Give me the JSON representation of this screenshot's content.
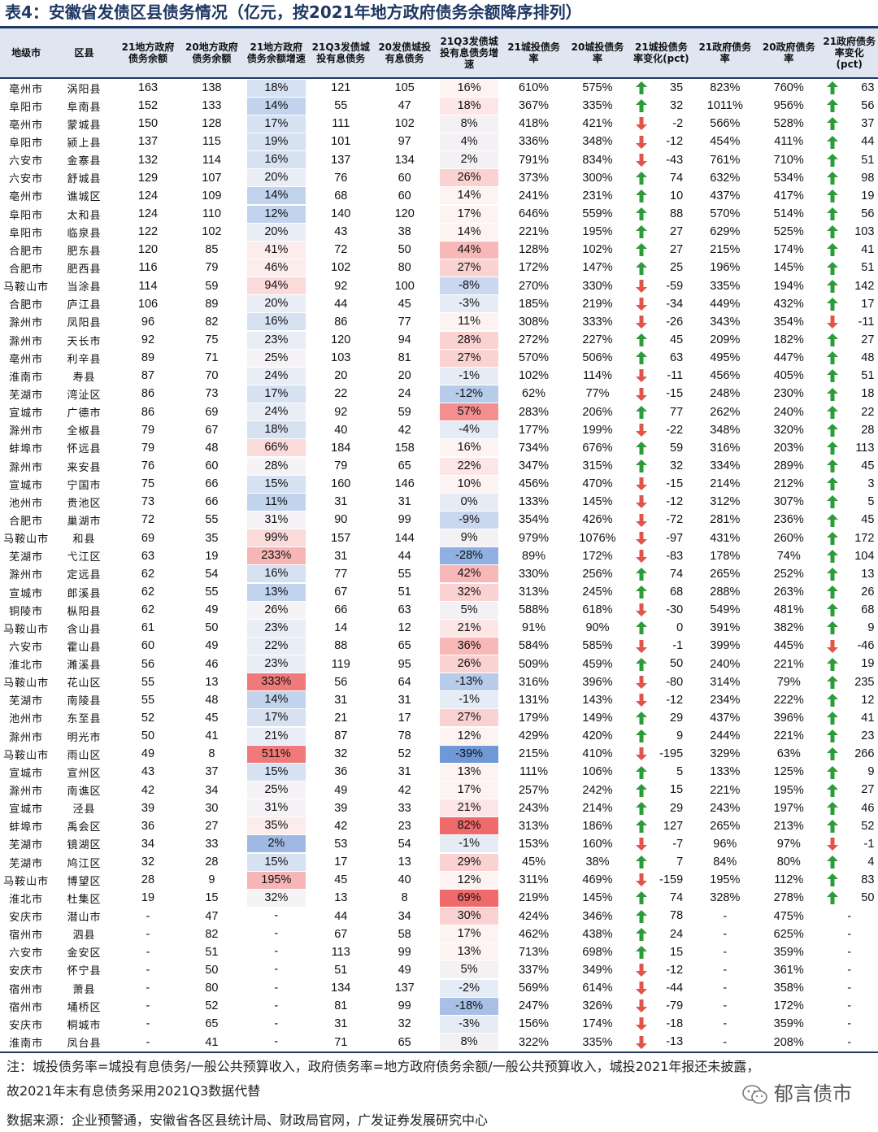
{
  "title": "表4：安徽省发债区县债务情况（亿元，按2021年地方政府债务余额降序排列）",
  "colors": {
    "up": "#2e9b3a",
    "down": "#e0554a",
    "header_bg": "#dfe6f2",
    "accent": "#1f3864"
  },
  "columns": [
    "地级市",
    "区县",
    "21地方政府债务余额",
    "20地方政府债务余额",
    "21地方政府债务余额增速",
    "21Q3发债城投有息债务",
    "20发债城投有息债务",
    "21Q3发债城投有息债务增速",
    "21城投债务率",
    "20城投债务率",
    "21城投债务率变化(pct)",
    "21政府债务率",
    "20政府债务率",
    "21政府债务率变化(pct)"
  ],
  "rows": [
    {
      "city": "亳州市",
      "county": "涡阳县",
      "gd21": "163",
      "gd20": "138",
      "gg": "18%",
      "cd21": "121",
      "cd20": "105",
      "cg": "16%",
      "cr21": "610%",
      "cr20": "575%",
      "crc": "35",
      "crd": "up",
      "gr21": "823%",
      "gr20": "760%",
      "grc": "63",
      "grd": "up"
    },
    {
      "city": "阜阳市",
      "county": "阜南县",
      "gd21": "152",
      "gd20": "133",
      "gg": "14%",
      "cd21": "55",
      "cd20": "47",
      "cg": "18%",
      "cr21": "367%",
      "cr20": "335%",
      "crc": "32",
      "crd": "up",
      "gr21": "1011%",
      "gr20": "956%",
      "grc": "56",
      "grd": "up"
    },
    {
      "city": "亳州市",
      "county": "蒙城县",
      "gd21": "150",
      "gd20": "128",
      "gg": "17%",
      "cd21": "111",
      "cd20": "102",
      "cg": "8%",
      "cr21": "418%",
      "cr20": "421%",
      "crc": "-2",
      "crd": "down",
      "gr21": "566%",
      "gr20": "528%",
      "grc": "37",
      "grd": "up"
    },
    {
      "city": "阜阳市",
      "county": "颍上县",
      "gd21": "137",
      "gd20": "115",
      "gg": "19%",
      "cd21": "101",
      "cd20": "97",
      "cg": "4%",
      "cr21": "336%",
      "cr20": "348%",
      "crc": "-12",
      "crd": "down",
      "gr21": "454%",
      "gr20": "411%",
      "grc": "44",
      "grd": "up"
    },
    {
      "city": "六安市",
      "county": "金寨县",
      "gd21": "132",
      "gd20": "114",
      "gg": "16%",
      "cd21": "137",
      "cd20": "134",
      "cg": "2%",
      "cr21": "791%",
      "cr20": "834%",
      "crc": "-43",
      "crd": "down",
      "gr21": "761%",
      "gr20": "710%",
      "grc": "51",
      "grd": "up"
    },
    {
      "city": "六安市",
      "county": "舒城县",
      "gd21": "129",
      "gd20": "107",
      "gg": "20%",
      "cd21": "76",
      "cd20": "60",
      "cg": "26%",
      "cr21": "373%",
      "cr20": "300%",
      "crc": "74",
      "crd": "up",
      "gr21": "632%",
      "gr20": "534%",
      "grc": "98",
      "grd": "up"
    },
    {
      "city": "亳州市",
      "county": "谯城区",
      "gd21": "124",
      "gd20": "109",
      "gg": "14%",
      "cd21": "68",
      "cd20": "60",
      "cg": "14%",
      "cr21": "241%",
      "cr20": "231%",
      "crc": "10",
      "crd": "up",
      "gr21": "437%",
      "gr20": "417%",
      "grc": "19",
      "grd": "up"
    },
    {
      "city": "阜阳市",
      "county": "太和县",
      "gd21": "124",
      "gd20": "110",
      "gg": "12%",
      "cd21": "140",
      "cd20": "120",
      "cg": "17%",
      "cr21": "646%",
      "cr20": "559%",
      "crc": "88",
      "crd": "up",
      "gr21": "570%",
      "gr20": "514%",
      "grc": "56",
      "grd": "up"
    },
    {
      "city": "阜阳市",
      "county": "临泉县",
      "gd21": "122",
      "gd20": "102",
      "gg": "20%",
      "cd21": "43",
      "cd20": "38",
      "cg": "14%",
      "cr21": "221%",
      "cr20": "195%",
      "crc": "27",
      "crd": "up",
      "gr21": "629%",
      "gr20": "525%",
      "grc": "103",
      "grd": "up"
    },
    {
      "city": "合肥市",
      "county": "肥东县",
      "gd21": "120",
      "gd20": "85",
      "gg": "41%",
      "cd21": "72",
      "cd20": "50",
      "cg": "44%",
      "cr21": "128%",
      "cr20": "102%",
      "crc": "27",
      "crd": "up",
      "gr21": "215%",
      "gr20": "174%",
      "grc": "41",
      "grd": "up"
    },
    {
      "city": "合肥市",
      "county": "肥西县",
      "gd21": "116",
      "gd20": "79",
      "gg": "46%",
      "cd21": "102",
      "cd20": "80",
      "cg": "27%",
      "cr21": "172%",
      "cr20": "147%",
      "crc": "25",
      "crd": "up",
      "gr21": "196%",
      "gr20": "145%",
      "grc": "51",
      "grd": "up"
    },
    {
      "city": "马鞍山市",
      "county": "当涂县",
      "gd21": "114",
      "gd20": "59",
      "gg": "94%",
      "cd21": "92",
      "cd20": "100",
      "cg": "-8%",
      "cr21": "270%",
      "cr20": "330%",
      "crc": "-59",
      "crd": "down",
      "gr21": "335%",
      "gr20": "194%",
      "grc": "142",
      "grd": "up"
    },
    {
      "city": "合肥市",
      "county": "庐江县",
      "gd21": "106",
      "gd20": "89",
      "gg": "20%",
      "cd21": "44",
      "cd20": "45",
      "cg": "-3%",
      "cr21": "185%",
      "cr20": "219%",
      "crc": "-34",
      "crd": "down",
      "gr21": "449%",
      "gr20": "432%",
      "grc": "17",
      "grd": "up"
    },
    {
      "city": "滁州市",
      "county": "凤阳县",
      "gd21": "96",
      "gd20": "82",
      "gg": "16%",
      "cd21": "86",
      "cd20": "77",
      "cg": "11%",
      "cr21": "308%",
      "cr20": "333%",
      "crc": "-26",
      "crd": "down",
      "gr21": "343%",
      "gr20": "354%",
      "grc": "-11",
      "grd": "down"
    },
    {
      "city": "滁州市",
      "county": "天长市",
      "gd21": "92",
      "gd20": "75",
      "gg": "23%",
      "cd21": "120",
      "cd20": "94",
      "cg": "28%",
      "cr21": "272%",
      "cr20": "227%",
      "crc": "45",
      "crd": "up",
      "gr21": "209%",
      "gr20": "182%",
      "grc": "27",
      "grd": "up"
    },
    {
      "city": "亳州市",
      "county": "利辛县",
      "gd21": "89",
      "gd20": "71",
      "gg": "25%",
      "cd21": "103",
      "cd20": "81",
      "cg": "27%",
      "cr21": "570%",
      "cr20": "506%",
      "crc": "63",
      "crd": "up",
      "gr21": "495%",
      "gr20": "447%",
      "grc": "48",
      "grd": "up"
    },
    {
      "city": "淮南市",
      "county": "寿县",
      "gd21": "87",
      "gd20": "70",
      "gg": "24%",
      "cd21": "20",
      "cd20": "20",
      "cg": "-1%",
      "cr21": "102%",
      "cr20": "114%",
      "crc": "-11",
      "crd": "down",
      "gr21": "456%",
      "gr20": "405%",
      "grc": "51",
      "grd": "up"
    },
    {
      "city": "芜湖市",
      "county": "湾沚区",
      "gd21": "86",
      "gd20": "73",
      "gg": "17%",
      "cd21": "22",
      "cd20": "24",
      "cg": "-12%",
      "cr21": "62%",
      "cr20": "77%",
      "crc": "-15",
      "crd": "down",
      "gr21": "248%",
      "gr20": "230%",
      "grc": "18",
      "grd": "up"
    },
    {
      "city": "宣城市",
      "county": "广德市",
      "gd21": "86",
      "gd20": "69",
      "gg": "24%",
      "cd21": "92",
      "cd20": "59",
      "cg": "57%",
      "cr21": "283%",
      "cr20": "206%",
      "crc": "77",
      "crd": "up",
      "gr21": "262%",
      "gr20": "240%",
      "grc": "22",
      "grd": "up"
    },
    {
      "city": "滁州市",
      "county": "全椒县",
      "gd21": "79",
      "gd20": "67",
      "gg": "18%",
      "cd21": "40",
      "cd20": "42",
      "cg": "-4%",
      "cr21": "177%",
      "cr20": "199%",
      "crc": "-22",
      "crd": "down",
      "gr21": "348%",
      "gr20": "320%",
      "grc": "28",
      "grd": "up"
    },
    {
      "city": "蚌埠市",
      "county": "怀远县",
      "gd21": "79",
      "gd20": "48",
      "gg": "66%",
      "cd21": "184",
      "cd20": "158",
      "cg": "16%",
      "cr21": "734%",
      "cr20": "676%",
      "crc": "59",
      "crd": "up",
      "gr21": "316%",
      "gr20": "203%",
      "grc": "113",
      "grd": "up"
    },
    {
      "city": "滁州市",
      "county": "来安县",
      "gd21": "76",
      "gd20": "60",
      "gg": "28%",
      "cd21": "79",
      "cd20": "65",
      "cg": "22%",
      "cr21": "347%",
      "cr20": "315%",
      "crc": "32",
      "crd": "up",
      "gr21": "334%",
      "gr20": "289%",
      "grc": "45",
      "grd": "up"
    },
    {
      "city": "宣城市",
      "county": "宁国市",
      "gd21": "75",
      "gd20": "66",
      "gg": "15%",
      "cd21": "160",
      "cd20": "146",
      "cg": "10%",
      "cr21": "456%",
      "cr20": "470%",
      "crc": "-15",
      "crd": "down",
      "gr21": "214%",
      "gr20": "212%",
      "grc": "3",
      "grd": "up"
    },
    {
      "city": "池州市",
      "county": "贵池区",
      "gd21": "73",
      "gd20": "66",
      "gg": "11%",
      "cd21": "31",
      "cd20": "31",
      "cg": "0%",
      "cr21": "133%",
      "cr20": "145%",
      "crc": "-12",
      "crd": "down",
      "gr21": "312%",
      "gr20": "307%",
      "grc": "5",
      "grd": "up"
    },
    {
      "city": "合肥市",
      "county": "巢湖市",
      "gd21": "72",
      "gd20": "55",
      "gg": "31%",
      "cd21": "90",
      "cd20": "99",
      "cg": "-9%",
      "cr21": "354%",
      "cr20": "426%",
      "crc": "-72",
      "crd": "down",
      "gr21": "281%",
      "gr20": "236%",
      "grc": "45",
      "grd": "up"
    },
    {
      "city": "马鞍山市",
      "county": "和县",
      "gd21": "69",
      "gd20": "35",
      "gg": "99%",
      "cd21": "157",
      "cd20": "144",
      "cg": "9%",
      "cr21": "979%",
      "cr20": "1076%",
      "crc": "-97",
      "crd": "down",
      "gr21": "431%",
      "gr20": "260%",
      "grc": "172",
      "grd": "up"
    },
    {
      "city": "芜湖市",
      "county": "弋江区",
      "gd21": "63",
      "gd20": "19",
      "gg": "233%",
      "cd21": "31",
      "cd20": "44",
      "cg": "-28%",
      "cr21": "89%",
      "cr20": "172%",
      "crc": "-83",
      "crd": "down",
      "gr21": "178%",
      "gr20": "74%",
      "grc": "104",
      "grd": "up"
    },
    {
      "city": "滁州市",
      "county": "定远县",
      "gd21": "62",
      "gd20": "54",
      "gg": "16%",
      "cd21": "77",
      "cd20": "55",
      "cg": "42%",
      "cr21": "330%",
      "cr20": "256%",
      "crc": "74",
      "crd": "up",
      "gr21": "265%",
      "gr20": "252%",
      "grc": "13",
      "grd": "up"
    },
    {
      "city": "宣城市",
      "county": "郎溪县",
      "gd21": "62",
      "gd20": "55",
      "gg": "13%",
      "cd21": "67",
      "cd20": "51",
      "cg": "32%",
      "cr21": "313%",
      "cr20": "245%",
      "crc": "68",
      "crd": "up",
      "gr21": "288%",
      "gr20": "263%",
      "grc": "26",
      "grd": "up"
    },
    {
      "city": "铜陵市",
      "county": "枞阳县",
      "gd21": "62",
      "gd20": "49",
      "gg": "26%",
      "cd21": "66",
      "cd20": "63",
      "cg": "5%",
      "cr21": "588%",
      "cr20": "618%",
      "crc": "-30",
      "crd": "down",
      "gr21": "549%",
      "gr20": "481%",
      "grc": "68",
      "grd": "up"
    },
    {
      "city": "马鞍山市",
      "county": "含山县",
      "gd21": "61",
      "gd20": "50",
      "gg": "23%",
      "cd21": "14",
      "cd20": "12",
      "cg": "21%",
      "cr21": "91%",
      "cr20": "90%",
      "crc": "0",
      "crd": "up",
      "gr21": "391%",
      "gr20": "382%",
      "grc": "9",
      "grd": "up"
    },
    {
      "city": "六安市",
      "county": "霍山县",
      "gd21": "60",
      "gd20": "49",
      "gg": "22%",
      "cd21": "88",
      "cd20": "65",
      "cg": "36%",
      "cr21": "584%",
      "cr20": "585%",
      "crc": "-1",
      "crd": "down",
      "gr21": "399%",
      "gr20": "445%",
      "grc": "-46",
      "grd": "down"
    },
    {
      "city": "淮北市",
      "county": "濉溪县",
      "gd21": "56",
      "gd20": "46",
      "gg": "23%",
      "cd21": "119",
      "cd20": "95",
      "cg": "26%",
      "cr21": "509%",
      "cr20": "459%",
      "crc": "50",
      "crd": "up",
      "gr21": "240%",
      "gr20": "221%",
      "grc": "19",
      "grd": "up"
    },
    {
      "city": "马鞍山市",
      "county": "花山区",
      "gd21": "55",
      "gd20": "13",
      "gg": "333%",
      "cd21": "56",
      "cd20": "64",
      "cg": "-13%",
      "cr21": "316%",
      "cr20": "396%",
      "crc": "-80",
      "crd": "down",
      "gr21": "314%",
      "gr20": "79%",
      "grc": "235",
      "grd": "up"
    },
    {
      "city": "芜湖市",
      "county": "南陵县",
      "gd21": "55",
      "gd20": "48",
      "gg": "14%",
      "cd21": "31",
      "cd20": "31",
      "cg": "-1%",
      "cr21": "131%",
      "cr20": "143%",
      "crc": "-12",
      "crd": "down",
      "gr21": "234%",
      "gr20": "222%",
      "grc": "12",
      "grd": "up"
    },
    {
      "city": "池州市",
      "county": "东至县",
      "gd21": "52",
      "gd20": "45",
      "gg": "17%",
      "cd21": "21",
      "cd20": "17",
      "cg": "27%",
      "cr21": "179%",
      "cr20": "149%",
      "crc": "29",
      "crd": "up",
      "gr21": "437%",
      "gr20": "396%",
      "grc": "41",
      "grd": "up"
    },
    {
      "city": "滁州市",
      "county": "明光市",
      "gd21": "50",
      "gd20": "41",
      "gg": "21%",
      "cd21": "87",
      "cd20": "78",
      "cg": "12%",
      "cr21": "429%",
      "cr20": "420%",
      "crc": "9",
      "crd": "up",
      "gr21": "244%",
      "gr20": "221%",
      "grc": "23",
      "grd": "up"
    },
    {
      "city": "马鞍山市",
      "county": "雨山区",
      "gd21": "49",
      "gd20": "8",
      "gg": "511%",
      "cd21": "32",
      "cd20": "52",
      "cg": "-39%",
      "cr21": "215%",
      "cr20": "410%",
      "crc": "-195",
      "crd": "down",
      "gr21": "329%",
      "gr20": "63%",
      "grc": "266",
      "grd": "up"
    },
    {
      "city": "宣城市",
      "county": "宣州区",
      "gd21": "43",
      "gd20": "37",
      "gg": "15%",
      "cd21": "36",
      "cd20": "31",
      "cg": "13%",
      "cr21": "111%",
      "cr20": "106%",
      "crc": "5",
      "crd": "up",
      "gr21": "133%",
      "gr20": "125%",
      "grc": "9",
      "grd": "up"
    },
    {
      "city": "滁州市",
      "county": "南谯区",
      "gd21": "42",
      "gd20": "34",
      "gg": "25%",
      "cd21": "49",
      "cd20": "42",
      "cg": "17%",
      "cr21": "257%",
      "cr20": "242%",
      "crc": "15",
      "crd": "up",
      "gr21": "221%",
      "gr20": "195%",
      "grc": "27",
      "grd": "up"
    },
    {
      "city": "宣城市",
      "county": "泾县",
      "gd21": "39",
      "gd20": "30",
      "gg": "31%",
      "cd21": "39",
      "cd20": "33",
      "cg": "21%",
      "cr21": "243%",
      "cr20": "214%",
      "crc": "29",
      "crd": "up",
      "gr21": "243%",
      "gr20": "197%",
      "grc": "46",
      "grd": "up"
    },
    {
      "city": "蚌埠市",
      "county": "禹会区",
      "gd21": "36",
      "gd20": "27",
      "gg": "35%",
      "cd21": "42",
      "cd20": "23",
      "cg": "82%",
      "cr21": "313%",
      "cr20": "186%",
      "crc": "127",
      "crd": "up",
      "gr21": "265%",
      "gr20": "213%",
      "grc": "52",
      "grd": "up"
    },
    {
      "city": "芜湖市",
      "county": "镜湖区",
      "gd21": "34",
      "gd20": "33",
      "gg": "2%",
      "cd21": "53",
      "cd20": "54",
      "cg": "-1%",
      "cr21": "153%",
      "cr20": "160%",
      "crc": "-7",
      "crd": "down",
      "gr21": "96%",
      "gr20": "97%",
      "grc": "-1",
      "grd": "down"
    },
    {
      "city": "芜湖市",
      "county": "鸠江区",
      "gd21": "32",
      "gd20": "28",
      "gg": "15%",
      "cd21": "17",
      "cd20": "13",
      "cg": "29%",
      "cr21": "45%",
      "cr20": "38%",
      "crc": "7",
      "crd": "up",
      "gr21": "84%",
      "gr20": "80%",
      "grc": "4",
      "grd": "up"
    },
    {
      "city": "马鞍山市",
      "county": "博望区",
      "gd21": "28",
      "gd20": "9",
      "gg": "195%",
      "cd21": "45",
      "cd20": "40",
      "cg": "12%",
      "cr21": "311%",
      "cr20": "469%",
      "crc": "-159",
      "crd": "down",
      "gr21": "195%",
      "gr20": "112%",
      "grc": "83",
      "grd": "up"
    },
    {
      "city": "淮北市",
      "county": "杜集区",
      "gd21": "19",
      "gd20": "15",
      "gg": "32%",
      "cd21": "13",
      "cd20": "8",
      "cg": "69%",
      "cr21": "219%",
      "cr20": "145%",
      "crc": "74",
      "crd": "up",
      "gr21": "328%",
      "gr20": "278%",
      "grc": "50",
      "grd": "up"
    },
    {
      "city": "安庆市",
      "county": "潜山市",
      "gd21": "-",
      "gd20": "47",
      "gg": "-",
      "cd21": "44",
      "cd20": "34",
      "cg": "30%",
      "cr21": "424%",
      "cr20": "346%",
      "crc": "78",
      "crd": "up",
      "gr21": "-",
      "gr20": "475%",
      "grc": "-",
      "grd": ""
    },
    {
      "city": "宿州市",
      "county": "泗县",
      "gd21": "-",
      "gd20": "82",
      "gg": "-",
      "cd21": "67",
      "cd20": "58",
      "cg": "17%",
      "cr21": "462%",
      "cr20": "438%",
      "crc": "24",
      "crd": "up",
      "gr21": "-",
      "gr20": "625%",
      "grc": "-",
      "grd": ""
    },
    {
      "city": "六安市",
      "county": "金安区",
      "gd21": "-",
      "gd20": "51",
      "gg": "-",
      "cd21": "113",
      "cd20": "99",
      "cg": "13%",
      "cr21": "713%",
      "cr20": "698%",
      "crc": "15",
      "crd": "up",
      "gr21": "-",
      "gr20": "359%",
      "grc": "-",
      "grd": ""
    },
    {
      "city": "安庆市",
      "county": "怀宁县",
      "gd21": "-",
      "gd20": "50",
      "gg": "-",
      "cd21": "51",
      "cd20": "49",
      "cg": "5%",
      "cr21": "337%",
      "cr20": "349%",
      "crc": "-12",
      "crd": "down",
      "gr21": "-",
      "gr20": "361%",
      "grc": "-",
      "grd": ""
    },
    {
      "city": "宿州市",
      "county": "萧县",
      "gd21": "-",
      "gd20": "80",
      "gg": "-",
      "cd21": "134",
      "cd20": "137",
      "cg": "-2%",
      "cr21": "569%",
      "cr20": "614%",
      "crc": "-44",
      "crd": "down",
      "gr21": "-",
      "gr20": "358%",
      "grc": "-",
      "grd": ""
    },
    {
      "city": "宿州市",
      "county": "埇桥区",
      "gd21": "-",
      "gd20": "52",
      "gg": "-",
      "cd21": "81",
      "cd20": "99",
      "cg": "-18%",
      "cr21": "247%",
      "cr20": "326%",
      "crc": "-79",
      "crd": "down",
      "gr21": "-",
      "gr20": "172%",
      "grc": "-",
      "grd": ""
    },
    {
      "city": "安庆市",
      "county": "桐城市",
      "gd21": "-",
      "gd20": "65",
      "gg": "-",
      "cd21": "31",
      "cd20": "32",
      "cg": "-3%",
      "cr21": "156%",
      "cr20": "174%",
      "crc": "-18",
      "crd": "down",
      "gr21": "-",
      "gr20": "359%",
      "grc": "-",
      "grd": ""
    },
    {
      "city": "淮南市",
      "county": "凤台县",
      "gd21": "-",
      "gd20": "41",
      "gg": "-",
      "cd21": "71",
      "cd20": "65",
      "cg": "8%",
      "cr21": "322%",
      "cr20": "335%",
      "crc": "-13",
      "crd": "down",
      "gr21": "-",
      "gr20": "208%",
      "grc": "-",
      "grd": ""
    }
  ],
  "notes": {
    "line1": "注：城投债务率=城投有息债务/一般公共预算收入，政府债务率=地方政府债务余额/一般公共预算收入，城投2021年报还未披露，",
    "line2": "故2021年末有息债务采用2021Q3数据代替"
  },
  "source": "数据来源：企业预警通，安徽省各区县统计局、财政局官网，广发证券发展研究中心",
  "watermark": "郁言债市"
}
